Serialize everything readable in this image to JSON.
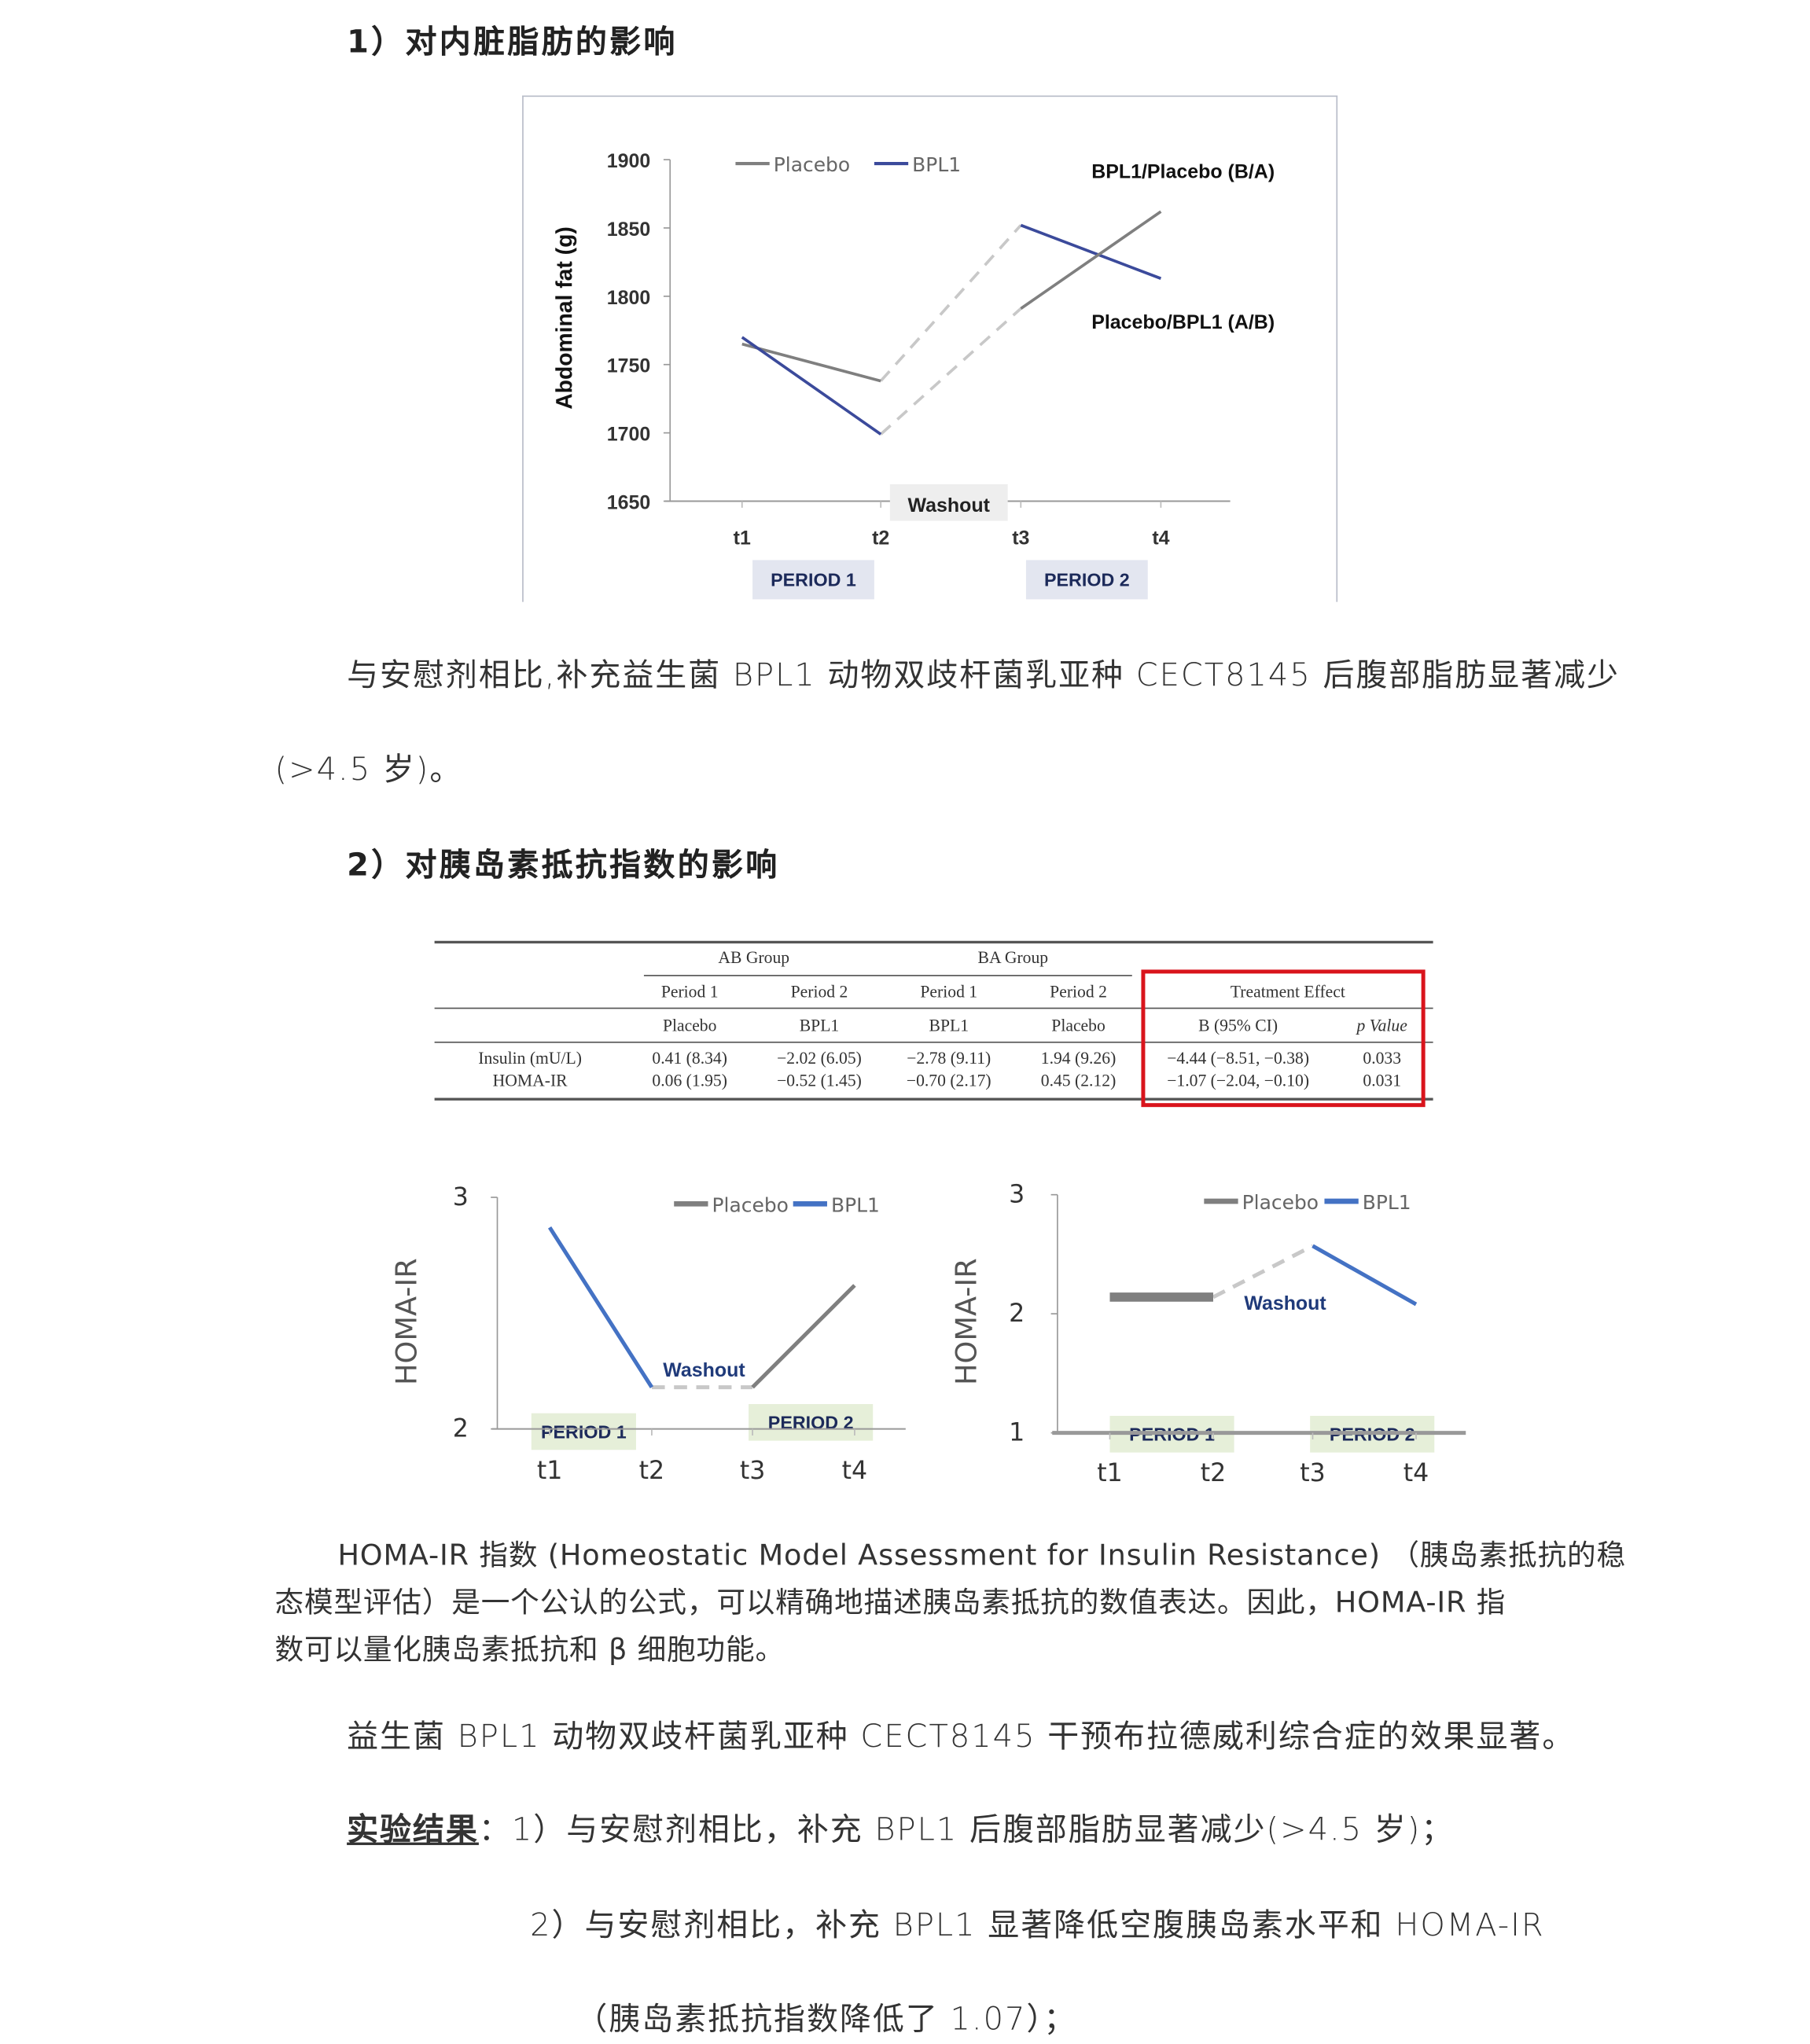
{
  "section1": {
    "heading": "1）对内脏脂肪的影响",
    "para_line1": "与安慰剂相比,补充益生菌 BPL1 动物双歧杆菌乳亚种 CECT8145 后腹部脂肪显著减少",
    "para_line2": "(>4.5 岁)。"
  },
  "section2": {
    "heading": "2）对胰岛素抵抗指数的影响"
  },
  "table": {
    "group_headers": [
      "AB Group",
      "BA Group"
    ],
    "period_row": [
      "Period 1",
      "Period 2",
      "Period 1",
      "Period 2",
      "Treatment Effect"
    ],
    "treatment_row": [
      "Placebo",
      "BPL1",
      "BPL1",
      "Placebo",
      "B (95% CI)",
      "p Value"
    ],
    "rows": [
      {
        "label": "Insulin (mU/L)",
        "cells": [
          "0.41 (8.34)",
          "−2.02 (6.05)",
          "−2.78 (9.11)",
          "1.94 (9.26)",
          "−4.44 (−8.51, −0.38)",
          "0.033"
        ]
      },
      {
        "label": "HOMA-IR",
        "cells": [
          "0.06 (1.95)",
          "−0.52 (1.45)",
          "−0.70 (2.17)",
          "0.45 (2.12)",
          "−1.07 (−2.04, −0.10)",
          "0.031"
        ]
      }
    ],
    "highlight_color": "#d9141c"
  },
  "homa_text": {
    "line1": "HOMA-IR 指数 (Homeostatic Model Assessment for Insulin Resistance) （胰岛素抵抗的稳",
    "line2": "态模型评估）是一个公认的公式，可以精确地描述胰岛素抵抗的数值表达。因此，HOMA-IR 指",
    "line3": "数可以量化胰岛素抵抗和 β 细胞功能。"
  },
  "conclusion": "益生菌 BPL1 动物双歧杆菌乳亚种 CECT8145 干预布拉德威利综合症的效果显著。",
  "results": {
    "label": "实验结果",
    "colon": "：",
    "item1": "1）与安慰剂相比，补充 BPL1 后腹部脂肪显著减少(>4.5 岁)；",
    "item2": "2）与安慰剂相比，补充 BPL1 显著降低空腹胰岛素水平和 HOMA-IR",
    "item2_cont": "（胰岛素抵抗指数降低了 1.07）；"
  },
  "colors": {
    "placebo": "#7f7f7f",
    "bpl1_chart1": "#3b4a9b",
    "bpl1": "#4472c4",
    "washout": "#c8c8c8",
    "period_chart1": "#e3e6f0",
    "period_chart2": "#e6efd9"
  },
  "chart_data": [
    {
      "type": "line",
      "ylabel": "Abdominal fat (g)",
      "ylim": [
        1650,
        1900
      ],
      "yticks": [
        1650,
        1700,
        1750,
        1800,
        1850,
        1900
      ],
      "x": [
        "t1",
        "t2",
        "t3",
        "t4"
      ],
      "legend": [
        "Placebo",
        "BPL1"
      ],
      "legend_placement": "top",
      "lines": [
        {
          "series": "Placebo",
          "points": [
            [
              "t1",
              1765
            ],
            [
              "t2",
              1738
            ]
          ]
        },
        {
          "series": "BPL1",
          "points": [
            [
              "t1",
              1770
            ],
            [
              "t2",
              1699
            ]
          ]
        },
        {
          "series": "BPL1",
          "points": [
            [
              "t3",
              1852
            ],
            [
              "t4",
              1813
            ]
          ]
        },
        {
          "series": "Placebo",
          "points": [
            [
              "t3",
              1791
            ],
            [
              "t4",
              1862
            ]
          ]
        }
      ],
      "washout": [
        {
          "points": [
            [
              "t2",
              1738
            ],
            [
              "t3",
              1852
            ]
          ]
        },
        {
          "points": [
            [
              "t2",
              1699
            ],
            [
              "t3",
              1791
            ]
          ]
        }
      ],
      "washout_label": "Washout",
      "period_labels": [
        "PERIOD 1",
        "PERIOD 2"
      ],
      "annotations": [
        "BPL1/Placebo (B/A)",
        "Placebo/BPL1 (A/B)"
      ]
    },
    {
      "type": "line",
      "ylabel": "HOMA-IR",
      "ylim": [
        2,
        3
      ],
      "yticks": [
        2,
        3
      ],
      "x": [
        "t1",
        "t2",
        "t3",
        "t4"
      ],
      "legend": [
        "Placebo",
        "BPL1"
      ],
      "legend_placement": "top-right",
      "lines": [
        {
          "series": "BPL1",
          "points": [
            [
              "t1",
              2.87
            ],
            [
              "t2",
              2.18
            ]
          ]
        },
        {
          "series": "Placebo",
          "points": [
            [
              "t3",
              2.18
            ],
            [
              "t4",
              2.62
            ]
          ]
        }
      ],
      "washout": [
        {
          "points": [
            [
              "t2",
              2.18
            ],
            [
              "t3",
              2.18
            ]
          ]
        }
      ],
      "washout_label": "Washout",
      "period_labels": [
        "PERIOD 1",
        "PERIOD 2"
      ]
    },
    {
      "type": "line",
      "ylabel": "HOMA-IR",
      "ylim": [
        1,
        3
      ],
      "yticks": [
        1,
        2,
        3
      ],
      "x": [
        "t1",
        "t2",
        "t3",
        "t4"
      ],
      "legend": [
        "Placebo",
        "BPL1"
      ],
      "legend_placement": "top-right",
      "lines": [
        {
          "series": "Placebo",
          "points": [
            [
              "t1",
              2.14
            ],
            [
              "t2",
              2.14
            ]
          ]
        },
        {
          "series": "BPL1",
          "points": [
            [
              "t3",
              2.57
            ],
            [
              "t4",
              2.08
            ]
          ]
        }
      ],
      "washout": [
        {
          "points": [
            [
              "t2",
              2.14
            ],
            [
              "t3",
              2.57
            ]
          ]
        }
      ],
      "washout_label": "Washout",
      "period_labels": [
        "PERIOD 1",
        "PERIOD 2"
      ]
    }
  ]
}
